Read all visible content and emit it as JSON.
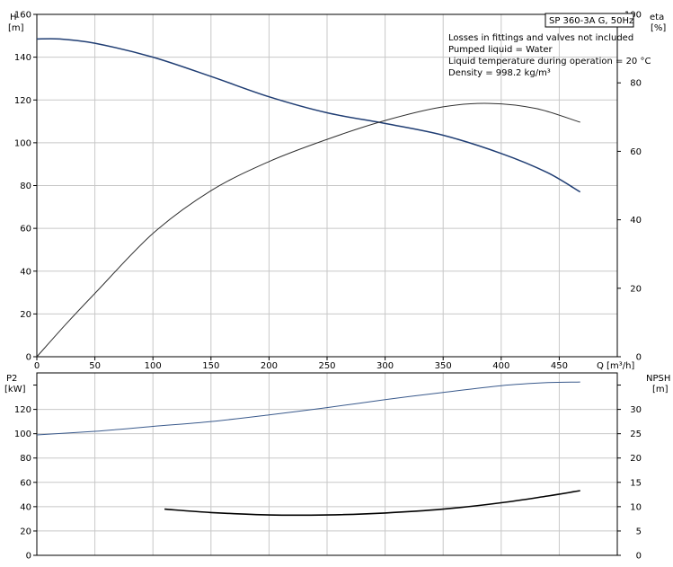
{
  "chart_data": [
    {
      "type": "line",
      "panel": "top",
      "title": "SP 360-3A G, 50Hz",
      "annotations": [
        "Losses in fittings and valves not included",
        "Pumped liquid = Water",
        "Liquid temperature during operation = 20 °C",
        "Density = 998.2 kg/m³"
      ],
      "xlabel": "Q [m³/h]",
      "ylabel_left_1": "H",
      "ylabel_left_2": "[m]",
      "ylabel_right_1": "eta",
      "ylabel_right_2": "[%]",
      "xlim": [
        0,
        500
      ],
      "ylim_left": [
        0,
        160
      ],
      "ylim_right": [
        0,
        100
      ],
      "x_ticks": [
        "0",
        "50",
        "100",
        "150",
        "200",
        "250",
        "300",
        "350",
        "400",
        "450"
      ],
      "y_ticks_left": [
        "0",
        "20",
        "40",
        "60",
        "80",
        "100",
        "120",
        "140",
        "160"
      ],
      "y_ticks_right": [
        "0",
        "20",
        "40",
        "60",
        "80",
        "100"
      ],
      "grid": true,
      "series": [
        {
          "axis": "left",
          "color": "#1f3d73",
          "x": [
            0,
            20,
            50,
            100,
            150,
            200,
            250,
            300,
            350,
            400,
            440,
            468
          ],
          "y": [
            148.5,
            148.5,
            146.5,
            140,
            131,
            121.5,
            114,
            109,
            103.5,
            95,
            86,
            77
          ]
        },
        {
          "axis": "right",
          "color": "#303030",
          "x": [
            0,
            25,
            50,
            100,
            150,
            200,
            250,
            300,
            350,
            390,
            430,
            468
          ],
          "y": [
            0,
            9.5,
            18.5,
            36,
            48.5,
            57,
            63.5,
            69,
            73,
            74,
            72.5,
            68.5
          ]
        }
      ]
    },
    {
      "type": "line",
      "panel": "bottom",
      "ylabel_left_1": "P2",
      "ylabel_left_2": "[kW]",
      "ylabel_right_1": "NPSH",
      "ylabel_right_2": "[m]",
      "xlim": [
        0,
        500
      ],
      "ylim_left": [
        0,
        150
      ],
      "ylim_right": [
        0,
        37.5
      ],
      "y_ticks_left": [
        "0",
        "20",
        "40",
        "60",
        "80",
        "100",
        "120"
      ],
      "y_ticks_right": [
        "0",
        "5",
        "10",
        "15",
        "20",
        "25",
        "30"
      ],
      "grid": true,
      "series": [
        {
          "axis": "left",
          "color": "#3a5a8c",
          "x": [
            0,
            50,
            100,
            150,
            200,
            250,
            300,
            350,
            400,
            440,
            468
          ],
          "y": [
            99,
            102,
            106,
            110,
            115.5,
            121.5,
            128,
            134,
            139.5,
            142,
            142.5
          ]
        },
        {
          "axis": "right",
          "color": "#000000",
          "x": [
            110,
            150,
            200,
            250,
            300,
            350,
            400,
            440,
            468
          ],
          "y": [
            9.5,
            8.8,
            8.3,
            8.3,
            8.7,
            9.5,
            10.8,
            12.2,
            13.3
          ]
        }
      ]
    }
  ]
}
